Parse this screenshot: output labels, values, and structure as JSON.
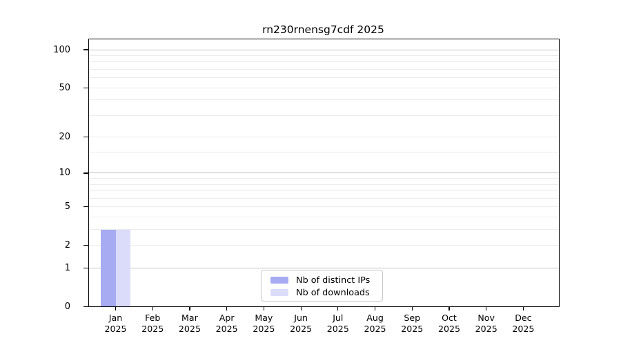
{
  "chart_title": "rn230rnensg7cdf 2025",
  "chart_data": {
    "type": "bar",
    "title": "rn230rnensg7cdf 2025",
    "categories": [
      "Jan 2025",
      "Feb 2025",
      "Mar 2025",
      "Apr 2025",
      "May 2025",
      "Jun 2025",
      "Jul 2025",
      "Aug 2025",
      "Sep 2025",
      "Oct 2025",
      "Nov 2025",
      "Dec 2025"
    ],
    "series": [
      {
        "name": "Nb of distinct IPs",
        "color": "#a7abf2",
        "values": [
          3,
          0,
          0,
          0,
          0,
          0,
          0,
          0,
          0,
          0,
          0,
          0
        ]
      },
      {
        "name": "Nb of downloads",
        "color": "#dadcfa",
        "values": [
          3,
          0,
          0,
          0,
          0,
          0,
          0,
          0,
          0,
          0,
          0,
          0
        ]
      }
    ],
    "y_axis": {
      "scale": "log1p",
      "tick_values": [
        0,
        1,
        2,
        5,
        10,
        20,
        50,
        100
      ],
      "tick_labels": [
        "0",
        "1",
        "2",
        "5",
        "10",
        "20",
        "50",
        "100"
      ],
      "major_gridlines": [
        1,
        10,
        100
      ],
      "minor_gridlines": [
        2,
        3,
        4,
        5,
        6,
        7,
        8,
        9,
        15,
        20,
        30,
        40,
        50,
        60,
        70,
        80,
        90
      ],
      "range": [
        0,
        120
      ]
    },
    "x_axis": {
      "label_line2": "2025"
    },
    "legend": {
      "position": "bottom-center",
      "items": [
        "Nb of distinct IPs",
        "Nb of downloads"
      ]
    },
    "grid": true
  },
  "legend": {
    "item1": "Nb of distinct IPs",
    "item2": "Nb of downloads"
  },
  "colors": {
    "bar_distinct_ips": "#a7abf2",
    "bar_downloads": "#dadcfa",
    "major_gridline": "#c0c0c0",
    "minor_gridline": "#ececec",
    "axis": "#000000",
    "legend_border": "#c8c8c8",
    "background": "#ffffff",
    "text": "#000000"
  }
}
